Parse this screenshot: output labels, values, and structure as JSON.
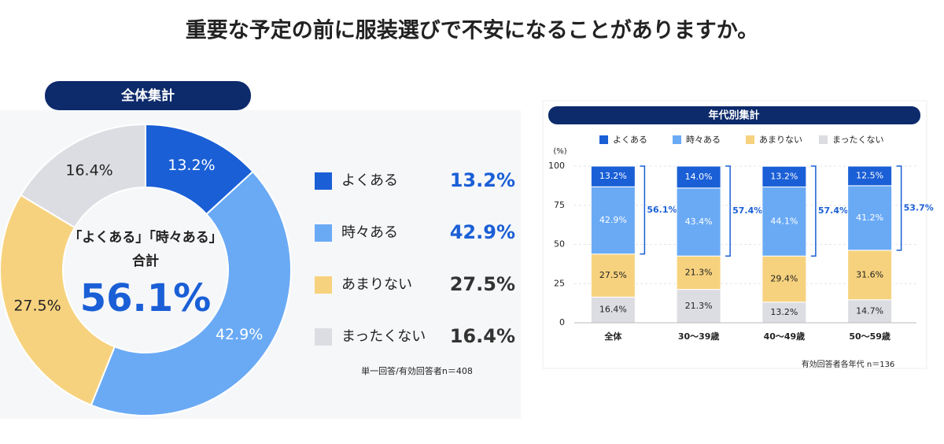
{
  "title": "重要な予定の前に服装選びで不安になることがありますか。",
  "chart_data": [
    {
      "type": "pie",
      "header": "全体集計",
      "categories": [
        "よくある",
        "時々ある",
        "あまりない",
        "まったくない"
      ],
      "values": [
        13.2,
        42.9,
        27.5,
        16.4
      ],
      "value_labels": [
        "13.2%",
        "42.9%",
        "27.5%",
        "16.4%"
      ],
      "colors": [
        "#1a5fd6",
        "#6aaaf5",
        "#f7d27e",
        "#dcdde2"
      ],
      "center_lines": [
        "「よくある」「時々ある」",
        "合計"
      ],
      "total": 56.1,
      "total_label": "56.1%",
      "note": "単一回答/有効回答者n＝408"
    },
    {
      "type": "bar",
      "stacked": true,
      "header": "年代別集計",
      "categories": [
        "全体",
        "30～39歳",
        "40～49歳",
        "50～59歳"
      ],
      "series": [
        {
          "name": "よくある",
          "color": "#1a5fd6",
          "values": [
            13.2,
            14.0,
            13.2,
            12.5
          ],
          "value_labels": [
            "13.2%",
            "14.0%",
            "13.2%",
            "12.5%"
          ]
        },
        {
          "name": "時々ある",
          "color": "#6aaaf5",
          "values": [
            42.9,
            43.4,
            44.1,
            41.2
          ],
          "value_labels": [
            "42.9%",
            "43.4%",
            "44.1%",
            "41.2%"
          ]
        },
        {
          "name": "あまりない",
          "color": "#f7d27e",
          "values": [
            27.5,
            21.3,
            29.4,
            31.6
          ],
          "value_labels": [
            "27.5%",
            "21.3%",
            "29.4%",
            "31.6%"
          ]
        },
        {
          "name": "まったくない",
          "color": "#dcdde2",
          "values": [
            16.4,
            21.3,
            13.2,
            14.7
          ],
          "value_labels": [
            "16.4%",
            "21.3%",
            "13.2%",
            "14.7%"
          ]
        }
      ],
      "bracket_values": [
        56.1,
        57.4,
        57.4,
        53.7
      ],
      "bracket_labels": [
        "56.1%",
        "57.4%",
        "57.4%",
        "53.7%"
      ],
      "y_label": "(%)",
      "ylim": [
        0,
        100
      ],
      "yticks": [
        0,
        25,
        50,
        75,
        100
      ],
      "grid": true,
      "note": "有効回答者各年代 n＝136"
    }
  ]
}
